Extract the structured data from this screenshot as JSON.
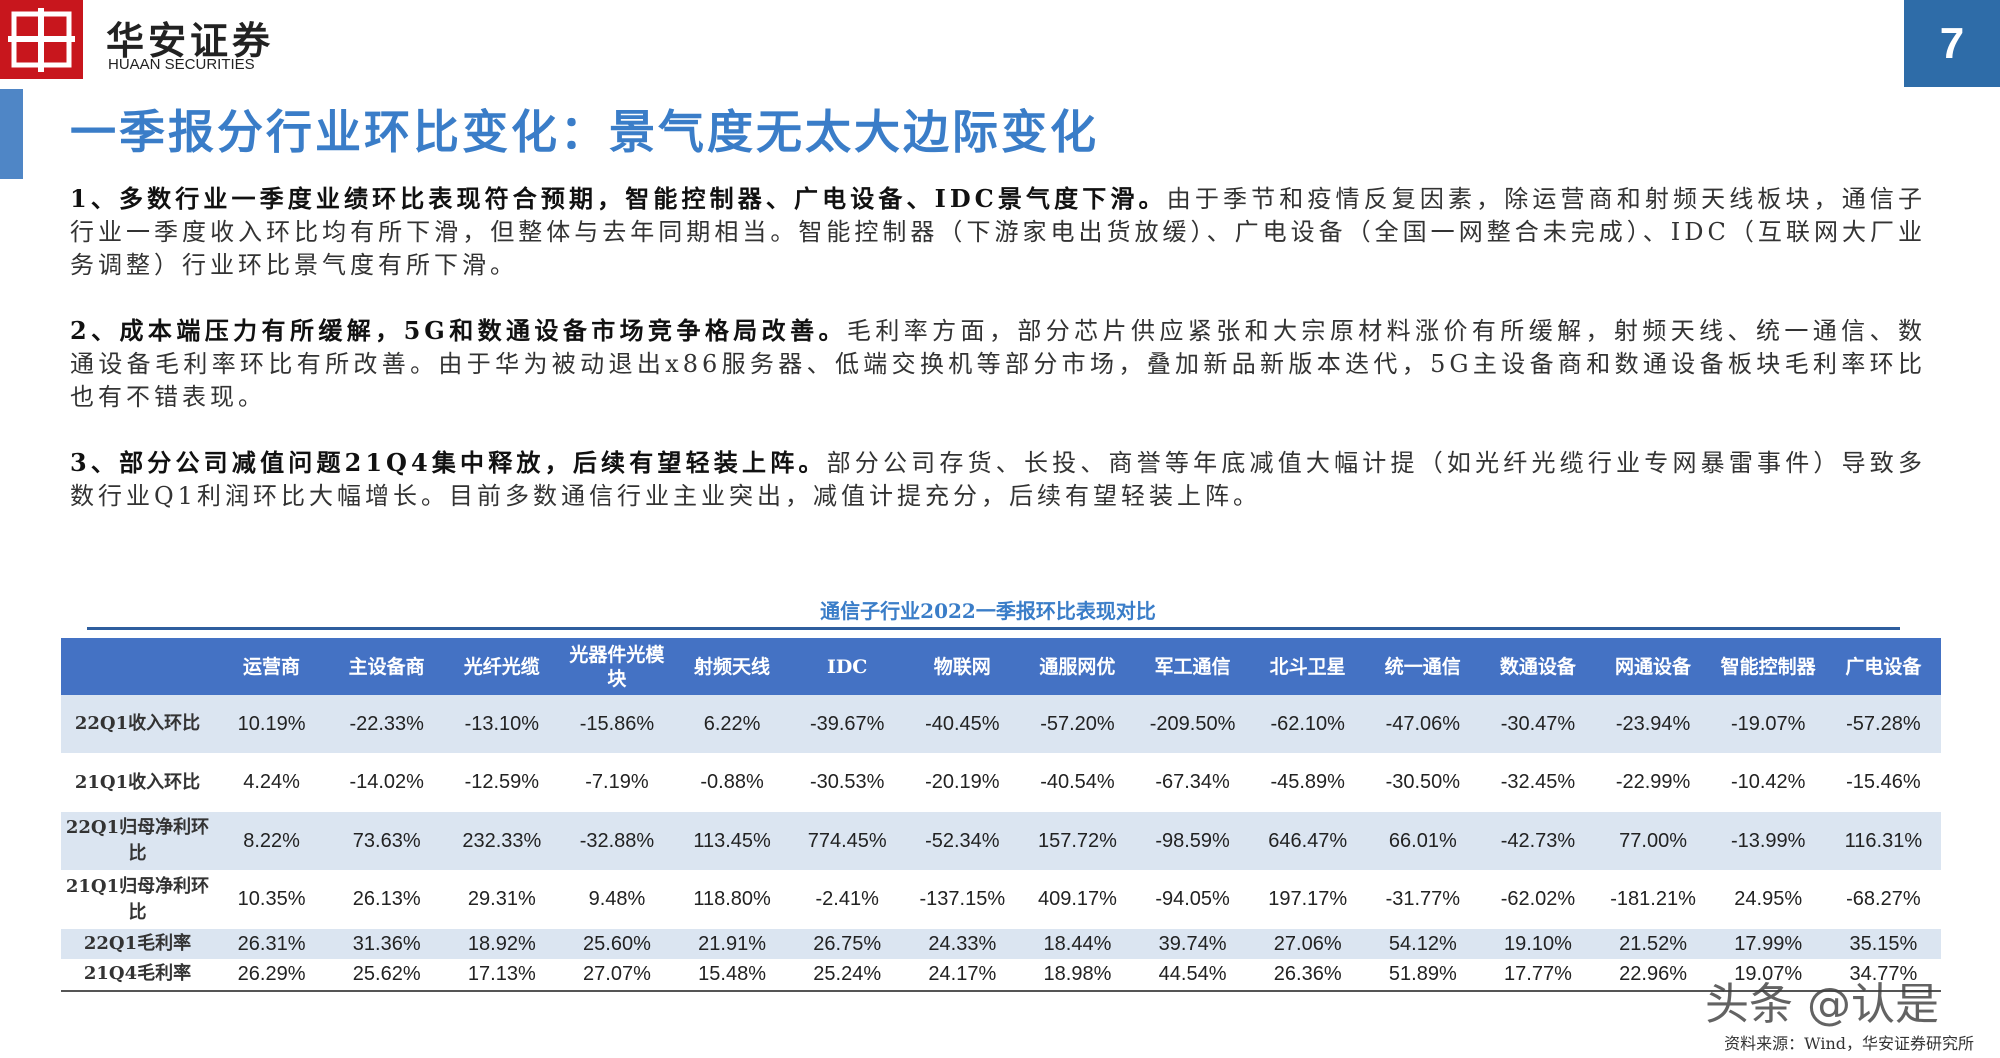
{
  "header": {
    "brand": "华安证券",
    "brand_en": "HUAAN SECURITIES",
    "page": "7"
  },
  "title": "一季报分行业环比变化：景气度无太大边际变化",
  "paragraphs": [
    {
      "bold": "1、多数行业一季度业绩环比表现符合预期，智能控制器、广电设备、IDC景气度下滑。",
      "text": "由于季节和疫情反复因素，除运营商和射频天线板块，通信子行业一季度收入环比均有所下滑，但整体与去年同期相当。智能控制器（下游家电出货放缓）、广电设备（全国一网整合未完成）、IDC（互联网大厂业务调整）行业环比景气度有所下滑。"
    },
    {
      "bold": "2、成本端压力有所缓解，5G和数通设备市场竞争格局改善。",
      "text": "毛利率方面，部分芯片供应紧张和大宗原材料涨价有所缓解，射频天线、统一通信、数通设备毛利率环比有所改善。由于华为被动退出x86服务器、低端交换机等部分市场，叠加新品新版本迭代，5G主设备商和数通设备板块毛利率环比也有不错表现。"
    },
    {
      "bold": "3、部分公司减值问题21Q4集中释放，后续有望轻装上阵。",
      "text": "部分公司存货、长投、商誉等年底减值大幅计提（如光纤光缆行业专网暴雷事件）导致多数行业Q1利润环比大幅增长。目前多数通信行业主业突出，减值计提充分，后续有望轻装上阵。"
    }
  ],
  "table": {
    "title": "通信子行业2022一季报环比表现对比",
    "headers": [
      "运营商",
      "主设备商",
      "光纤光缆",
      "光器件光模块",
      "射频天线",
      "IDC",
      "物联网",
      "通服网优",
      "军工通信",
      "北斗卫星",
      "统一通信",
      "数通设备",
      "网通设备",
      "智能控制器",
      "广电设备"
    ],
    "rows": [
      {
        "label": "22Q1收入环比",
        "cells": [
          "10.19%",
          "-22.33%",
          "-13.10%",
          "-15.86%",
          "6.22%",
          "-39.67%",
          "-40.45%",
          "-57.20%",
          "-209.50%",
          "-62.10%",
          "-47.06%",
          "-30.47%",
          "-23.94%",
          "-19.07%",
          "-57.28%"
        ]
      },
      {
        "label": "21Q1收入环比",
        "cells": [
          "4.24%",
          "-14.02%",
          "-12.59%",
          "-7.19%",
          "-0.88%",
          "-30.53%",
          "-20.19%",
          "-40.54%",
          "-67.34%",
          "-45.89%",
          "-30.50%",
          "-32.45%",
          "-22.99%",
          "-10.42%",
          "-15.46%"
        ]
      },
      {
        "label": "22Q1归母净利环比",
        "cells": [
          "8.22%",
          "73.63%",
          "232.33%",
          "-32.88%",
          "113.45%",
          "774.45%",
          "-52.34%",
          "157.72%",
          "-98.59%",
          "646.47%",
          "66.01%",
          "-42.73%",
          "77.00%",
          "-13.99%",
          "116.31%"
        ]
      },
      {
        "label": "21Q1归母净利环比",
        "cells": [
          "10.35%",
          "26.13%",
          "29.31%",
          "9.48%",
          "118.80%",
          "-2.41%",
          "-137.15%",
          "409.17%",
          "-94.05%",
          "197.17%",
          "-31.77%",
          "-62.02%",
          "-181.21%",
          "24.95%",
          "-68.27%"
        ]
      },
      {
        "label": "22Q1毛利率",
        "cells": [
          "26.31%",
          "31.36%",
          "18.92%",
          "25.60%",
          "21.91%",
          "26.75%",
          "24.33%",
          "18.44%",
          "39.74%",
          "27.06%",
          "54.12%",
          "19.10%",
          "21.52%",
          "17.99%",
          "35.15%"
        ]
      },
      {
        "label": "21Q4毛利率",
        "cells": [
          "26.29%",
          "25.62%",
          "17.13%",
          "27.07%",
          "15.48%",
          "25.24%",
          "24.17%",
          "18.98%",
          "44.54%",
          "26.36%",
          "51.89%",
          "17.77%",
          "22.96%",
          "19.07%",
          "34.77%"
        ]
      }
    ]
  },
  "watermark": "头条 @认是",
  "source": "资料来源：Wind，华安证券研究所"
}
